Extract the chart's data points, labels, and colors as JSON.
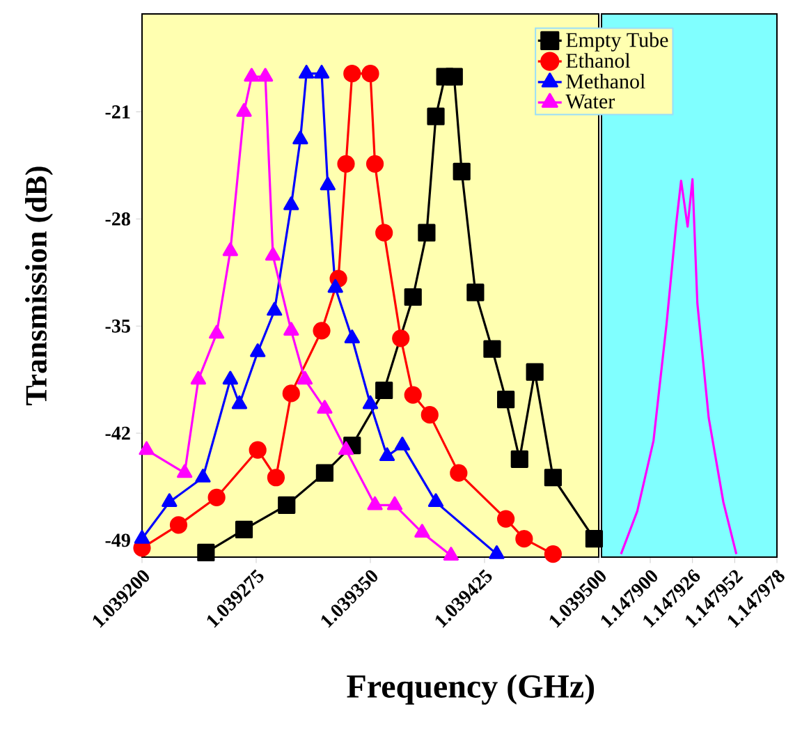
{
  "chart_data": [
    {
      "type": "line",
      "xlabel": "Frequency (GHz)",
      "ylabel": "Transmission (dB)",
      "legend": "top right",
      "grid": false,
      "xlim": [
        1.0392,
        1.0395
      ],
      "ylim": [
        -50.1,
        -14.6
      ],
      "xticks": [
        {
          "value": 1.0392,
          "label": "1.039200"
        },
        1.039275,
        {
          "value": 1.03935,
          "label": "1.039350"
        },
        1.039425,
        {
          "value": 1.0395,
          "label": "1.039500"
        }
      ],
      "yticks": [
        -49,
        -42,
        -35,
        -28,
        -21
      ],
      "series": [
        {
          "name": "Empty Tube",
          "color": "#000000",
          "marker": "square",
          "x": [
            1.039242,
            1.039267,
            1.039295,
            1.03932,
            1.039338,
            1.039359,
            1.039378,
            1.039387,
            1.039393,
            1.039399,
            1.039405,
            1.03941,
            1.039419,
            1.03943,
            1.039439,
            1.039448,
            1.039458,
            1.03947,
            1.039497
          ],
          "values": [
            -49.8,
            -48.3,
            -46.7,
            -44.6,
            -42.8,
            -39.2,
            -33.1,
            -28.9,
            -21.3,
            -18.7,
            -18.7,
            -24.9,
            -32.8,
            -36.5,
            -39.8,
            -43.7,
            -38.0,
            -44.9,
            -48.9
          ]
        },
        {
          "name": "Ethanol",
          "color": "#ff0000",
          "marker": "circle",
          "x": [
            1.0392,
            1.039224,
            1.039249,
            1.039276,
            1.039288,
            1.039298,
            1.039318,
            1.039329,
            1.039334,
            1.039338,
            1.03935,
            1.039353,
            1.039359,
            1.03937,
            1.039378,
            1.039389,
            1.039408,
            1.039439,
            1.039451,
            1.03947
          ],
          "values": [
            -49.5,
            -48.0,
            -46.2,
            -43.1,
            -44.9,
            -39.4,
            -35.3,
            -31.9,
            -24.4,
            -18.5,
            -18.5,
            -24.4,
            -28.9,
            -35.8,
            -39.5,
            -40.8,
            -44.6,
            -47.6,
            -48.9,
            -49.9
          ]
        },
        {
          "name": "Methanol",
          "color": "#0000ff",
          "marker": "triangle",
          "x": [
            1.0392,
            1.039218,
            1.03924,
            1.039258,
            1.039264,
            1.039276,
            1.039287,
            1.039298,
            1.039304,
            1.039308,
            1.039318,
            1.039322,
            1.039327,
            1.039338,
            1.03935,
            1.039361,
            1.039371,
            1.039393,
            1.039433
          ],
          "values": [
            -48.9,
            -46.5,
            -44.9,
            -38.5,
            -40.1,
            -36.7,
            -34.0,
            -27.1,
            -22.8,
            -18.5,
            -18.5,
            -25.8,
            -32.5,
            -35.8,
            -40.1,
            -43.5,
            -42.8,
            -46.5,
            -49.9
          ]
        },
        {
          "name": "Water",
          "color": "#ff00ff",
          "marker": "triangle",
          "x": [
            1.039203,
            1.039228,
            1.039237,
            1.039249,
            1.039258,
            1.039267,
            1.039272,
            1.039281,
            1.039286,
            1.039298,
            1.039307,
            1.03932,
            1.039334,
            1.039353,
            1.039366,
            1.039384,
            1.039403
          ],
          "values": [
            -43.1,
            -44.6,
            -38.5,
            -35.5,
            -30.1,
            -21.0,
            -18.7,
            -18.7,
            -30.4,
            -35.3,
            -38.5,
            -40.4,
            -43.1,
            -46.7,
            -46.7,
            -48.5,
            -50.0
          ]
        }
      ]
    },
    {
      "type": "line",
      "tick_labels": "x",
      "grid": false,
      "xlim": [
        1.14787,
        1.147978
      ],
      "ylim": [
        -50.1,
        -14.6
      ],
      "xticks": [
        {
          "value": 1.1479,
          "label": "1.147900"
        },
        1.147926,
        1.147952,
        1.147978
      ],
      "series": [
        {
          "color": "#ff00ff",
          "marker": "none",
          "x": [
            1.147882,
            1.147892,
            1.147902,
            1.14791,
            1.147916,
            1.147919,
            1.147923,
            1.147926,
            1.147929,
            1.147936,
            1.147945,
            1.147953
          ],
          "values": [
            -49.9,
            -47.1,
            -42.5,
            -34.9,
            -28.3,
            -25.5,
            -28.5,
            -25.4,
            -33.5,
            -41.0,
            -46.5,
            -49.9
          ]
        }
      ]
    }
  ]
}
